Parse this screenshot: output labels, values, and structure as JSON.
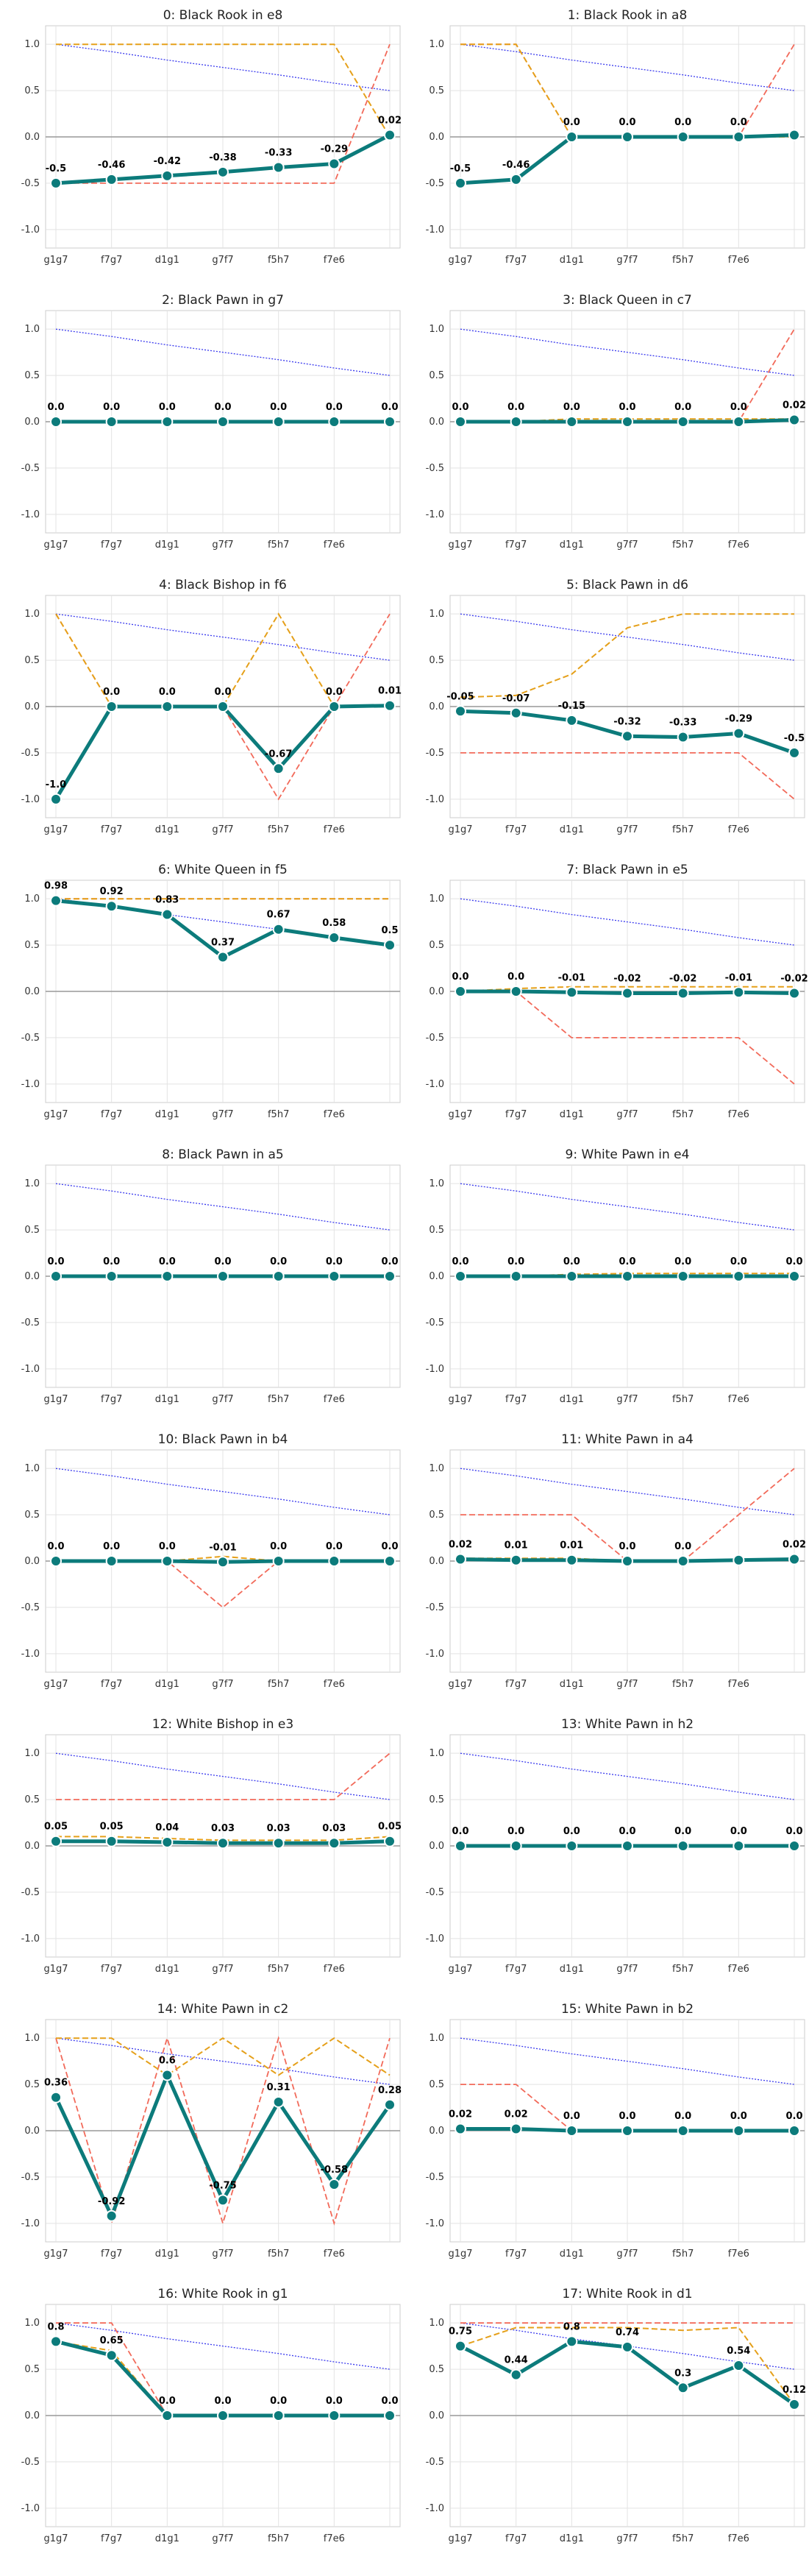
{
  "chart_data": {
    "type": "line",
    "x_ticks": [
      "g1g7",
      "f7g7",
      "d1g1",
      "g7f7",
      "f5h7",
      "f7e6",
      ""
    ],
    "y_ticks": [
      "1.0",
      "0.5",
      "0.0",
      "-0.5",
      "-1.0"
    ],
    "ylim": [
      -1.2,
      1.2
    ],
    "grid": true,
    "colors": {
      "main": "#0c7b7b",
      "orange": "#e5a01a",
      "red": "#f26a5a",
      "blue": "#3a3aee",
      "zero": "#999999"
    },
    "panels": [
      {
        "title": "0: Black Rook in e8",
        "main": [
          -0.5,
          -0.46,
          -0.42,
          -0.38,
          -0.33,
          -0.29,
          0.02
        ],
        "labels": [
          "-0.5",
          "-0.46",
          "-0.42",
          "-0.38",
          "-0.33",
          "-0.29",
          "0.02"
        ],
        "orange": [
          1.0,
          1.0,
          1.0,
          1.0,
          1.0,
          1.0,
          0.0
        ],
        "red": [
          -0.5,
          -0.5,
          -0.5,
          -0.5,
          -0.5,
          -0.5,
          1.0
        ],
        "blue": [
          1.0,
          0.92,
          0.83,
          0.75,
          0.67,
          0.58,
          0.5
        ]
      },
      {
        "title": "1: Black Rook in a8",
        "main": [
          -0.5,
          -0.46,
          0.0,
          0.0,
          0.0,
          0.0,
          0.02
        ],
        "labels": [
          "-0.5",
          "-0.46",
          "0.0",
          "0.0",
          "0.0",
          "0.0",
          ""
        ],
        "orange": [
          1.0,
          1.0,
          0.0,
          0.0,
          0.0,
          0.0,
          0.0
        ],
        "red": [
          1.0,
          1.0,
          0.0,
          0.0,
          0.0,
          0.0,
          1.0
        ],
        "blue": [
          1.0,
          0.92,
          0.83,
          0.75,
          0.67,
          0.58,
          0.5
        ]
      },
      {
        "title": "2: Black Pawn in g7",
        "main": [
          0.0,
          0.0,
          0.0,
          0.0,
          0.0,
          0.0,
          0.0
        ],
        "labels": [
          "0.0",
          "0.0",
          "0.0",
          "0.0",
          "0.0",
          "0.0",
          "0.0"
        ],
        "orange": [
          0.0,
          0.0,
          0.0,
          0.0,
          0.0,
          0.0,
          0.0
        ],
        "red": [
          0.0,
          0.0,
          0.0,
          0.0,
          0.0,
          0.0,
          0.0
        ],
        "blue": [
          1.0,
          0.92,
          0.83,
          0.75,
          0.67,
          0.58,
          0.5
        ]
      },
      {
        "title": "3: Black Queen in c7",
        "main": [
          0.0,
          0.0,
          0.0,
          0.0,
          0.0,
          0.0,
          0.02
        ],
        "labels": [
          "0.0",
          "0.0",
          "0.0",
          "0.0",
          "0.0",
          "0.0",
          "0.02"
        ],
        "orange": [
          0.0,
          0.0,
          0.03,
          0.03,
          0.03,
          0.03,
          0.03
        ],
        "red": [
          0.0,
          0.0,
          0.0,
          0.0,
          0.0,
          0.0,
          1.0
        ],
        "blue": [
          1.0,
          0.92,
          0.83,
          0.75,
          0.67,
          0.58,
          0.5
        ]
      },
      {
        "title": "4: Black Bishop in f6",
        "main": [
          -1.0,
          0.0,
          0.0,
          0.0,
          -0.67,
          0.0,
          0.01
        ],
        "labels": [
          "-1.0",
          "0.0",
          "0.0",
          "0.0",
          "-0.67",
          "0.0",
          "0.01"
        ],
        "orange": [
          1.0,
          0.0,
          0.0,
          0.0,
          1.0,
          0.0,
          0.0
        ],
        "red": [
          1.0,
          0.0,
          0.0,
          0.0,
          -1.0,
          0.0,
          1.0
        ],
        "blue": [
          1.0,
          0.92,
          0.83,
          0.75,
          0.67,
          0.58,
          0.5
        ]
      },
      {
        "title": "5: Black Pawn in d6",
        "main": [
          -0.05,
          -0.07,
          -0.15,
          -0.32,
          -0.33,
          -0.29,
          -0.5
        ],
        "labels": [
          "-0.05",
          "-0.07",
          "-0.15",
          "-0.32",
          "-0.33",
          "-0.29",
          "-0.5"
        ],
        "orange": [
          0.1,
          0.12,
          0.35,
          0.85,
          1.0,
          1.0,
          1.0
        ],
        "red": [
          -0.5,
          -0.5,
          -0.5,
          -0.5,
          -0.5,
          -0.5,
          -1.0
        ],
        "blue": [
          1.0,
          0.92,
          0.83,
          0.75,
          0.67,
          0.58,
          0.5
        ]
      },
      {
        "title": "6: White Queen in f5",
        "main": [
          0.98,
          0.92,
          0.83,
          0.37,
          0.67,
          0.58,
          0.5
        ],
        "labels": [
          "0.98",
          "0.92",
          "0.83",
          "0.37",
          "0.67",
          "0.58",
          "0.5"
        ],
        "orange": [
          1.0,
          1.0,
          1.0,
          1.0,
          1.0,
          1.0,
          1.0
        ],
        "red": [
          1.0,
          1.0,
          1.0,
          1.0,
          1.0,
          1.0,
          1.0
        ],
        "blue": [
          1.0,
          0.92,
          0.83,
          0.75,
          0.67,
          0.58,
          0.5
        ]
      },
      {
        "title": "7: Black Pawn in e5",
        "main": [
          0.0,
          0.0,
          -0.01,
          -0.02,
          -0.02,
          -0.01,
          -0.02
        ],
        "labels": [
          "0.0",
          "0.0",
          "-0.01",
          "-0.02",
          "-0.02",
          "-0.01",
          "-0.02"
        ],
        "orange": [
          0.0,
          0.03,
          0.05,
          0.05,
          0.05,
          0.05,
          0.05
        ],
        "red": [
          0.0,
          0.0,
          -0.5,
          -0.5,
          -0.5,
          -0.5,
          -1.0
        ],
        "blue": [
          1.0,
          0.92,
          0.83,
          0.75,
          0.67,
          0.58,
          0.5
        ]
      },
      {
        "title": "8: Black Pawn in a5",
        "main": [
          0.0,
          0.0,
          0.0,
          0.0,
          0.0,
          0.0,
          0.0
        ],
        "labels": [
          "0.0",
          "0.0",
          "0.0",
          "0.0",
          "0.0",
          "0.0",
          "0.0"
        ],
        "orange": [
          0.0,
          0.0,
          0.0,
          0.0,
          0.0,
          0.0,
          0.0
        ],
        "red": [
          0.0,
          0.0,
          0.0,
          0.0,
          0.0,
          0.0,
          0.0
        ],
        "blue": [
          1.0,
          0.92,
          0.83,
          0.75,
          0.67,
          0.58,
          0.5
        ]
      },
      {
        "title": "9: White Pawn in e4",
        "main": [
          0.0,
          0.0,
          0.0,
          0.0,
          0.0,
          0.0,
          0.0
        ],
        "labels": [
          "0.0",
          "0.0",
          "0.0",
          "0.0",
          "0.0",
          "0.0",
          "0.0"
        ],
        "orange": [
          0.0,
          0.0,
          0.02,
          0.03,
          0.03,
          0.03,
          0.03
        ],
        "red": [
          0.0,
          0.0,
          0.0,
          0.0,
          0.0,
          0.0,
          0.0
        ],
        "blue": [
          1.0,
          0.92,
          0.83,
          0.75,
          0.67,
          0.58,
          0.5
        ]
      },
      {
        "title": "10: Black Pawn in b4",
        "main": [
          0.0,
          0.0,
          0.0,
          -0.01,
          0.0,
          0.0,
          0.0
        ],
        "labels": [
          "0.0",
          "0.0",
          "0.0",
          "-0.01",
          "0.0",
          "0.0",
          "0.0"
        ],
        "orange": [
          0.0,
          0.0,
          0.0,
          0.05,
          0.0,
          0.0,
          0.0
        ],
        "red": [
          0.0,
          0.0,
          0.0,
          -0.5,
          0.0,
          0.0,
          0.0
        ],
        "blue": [
          1.0,
          0.92,
          0.83,
          0.75,
          0.67,
          0.58,
          0.5
        ]
      },
      {
        "title": "11: White Pawn in a4",
        "main": [
          0.02,
          0.01,
          0.01,
          0.0,
          0.0,
          0.01,
          0.02
        ],
        "labels": [
          "0.02",
          "0.01",
          "0.01",
          "0.0",
          "0.0",
          "",
          "0.02"
        ],
        "orange": [
          0.03,
          0.03,
          0.03,
          0.0,
          0.0,
          0.0,
          0.03
        ],
        "red": [
          0.5,
          0.5,
          0.5,
          0.0,
          0.0,
          0.5,
          1.0
        ],
        "blue": [
          1.0,
          0.92,
          0.83,
          0.75,
          0.67,
          0.58,
          0.5
        ]
      },
      {
        "title": "12: White Bishop in e3",
        "main": [
          0.05,
          0.05,
          0.04,
          0.03,
          0.03,
          0.03,
          0.05
        ],
        "labels": [
          "0.05",
          "0.05",
          "0.04",
          "0.03",
          "0.03",
          "0.03",
          "0.05"
        ],
        "orange": [
          0.1,
          0.1,
          0.08,
          0.06,
          0.06,
          0.06,
          0.1
        ],
        "red": [
          0.5,
          0.5,
          0.5,
          0.5,
          0.5,
          0.5,
          1.0
        ],
        "blue": [
          1.0,
          0.92,
          0.83,
          0.75,
          0.67,
          0.58,
          0.5
        ]
      },
      {
        "title": "13: White Pawn in h2",
        "main": [
          0.0,
          0.0,
          0.0,
          0.0,
          0.0,
          0.0,
          0.0
        ],
        "labels": [
          "0.0",
          "0.0",
          "0.0",
          "0.0",
          "0.0",
          "0.0",
          "0.0"
        ],
        "orange": [
          0.0,
          0.0,
          0.0,
          0.0,
          0.0,
          0.0,
          0.0
        ],
        "red": [
          0.0,
          0.0,
          0.0,
          0.0,
          0.0,
          0.0,
          0.0
        ],
        "blue": [
          1.0,
          0.92,
          0.83,
          0.75,
          0.67,
          0.58,
          0.5
        ]
      },
      {
        "title": "14: White Pawn in c2",
        "main": [
          0.36,
          -0.92,
          0.6,
          -0.75,
          0.31,
          -0.58,
          0.28
        ],
        "labels": [
          "0.36",
          "-0.92",
          "0.6",
          "-0.75",
          "0.31",
          "-0.58",
          "0.28"
        ],
        "orange": [
          1.0,
          1.0,
          0.6,
          1.0,
          0.6,
          1.0,
          0.6
        ],
        "red": [
          1.0,
          -1.0,
          1.0,
          -1.0,
          1.0,
          -1.0,
          1.0
        ],
        "blue": [
          1.0,
          0.92,
          0.83,
          0.75,
          0.67,
          0.58,
          0.5
        ]
      },
      {
        "title": "15: White Pawn in b2",
        "main": [
          0.02,
          0.02,
          0.0,
          0.0,
          0.0,
          0.0,
          0.0
        ],
        "labels": [
          "0.02",
          "0.02",
          "0.0",
          "0.0",
          "0.0",
          "0.0",
          "0.0"
        ],
        "orange": [
          0.03,
          0.03,
          0.0,
          0.0,
          0.0,
          0.0,
          0.0
        ],
        "red": [
          0.5,
          0.5,
          0.0,
          0.0,
          0.0,
          0.0,
          0.0
        ],
        "blue": [
          1.0,
          0.92,
          0.83,
          0.75,
          0.67,
          0.58,
          0.5
        ]
      },
      {
        "title": "16: White Rook in g1",
        "main": [
          0.8,
          0.65,
          0.0,
          0.0,
          0.0,
          0.0,
          0.0
        ],
        "labels": [
          "0.8",
          "0.65",
          "0.0",
          "0.0",
          "0.0",
          "0.0",
          "0.0"
        ],
        "orange": [
          0.8,
          0.7,
          0.0,
          0.0,
          0.0,
          0.0,
          0.0
        ],
        "red": [
          1.0,
          1.0,
          0.0,
          0.0,
          0.0,
          0.0,
          0.0
        ],
        "blue": [
          1.0,
          0.92,
          0.83,
          0.75,
          0.67,
          0.58,
          0.5
        ]
      },
      {
        "title": "17: White Rook in d1",
        "main": [
          0.75,
          0.44,
          0.8,
          0.74,
          0.3,
          0.54,
          0.12
        ],
        "labels": [
          "0.75",
          "0.44",
          "0.8",
          "0.74",
          "0.3",
          "0.54",
          "0.12"
        ],
        "orange": [
          0.75,
          0.95,
          0.95,
          0.95,
          0.92,
          0.95,
          0.12
        ],
        "red": [
          1.0,
          1.0,
          1.0,
          1.0,
          1.0,
          1.0,
          1.0
        ],
        "blue": [
          1.0,
          0.92,
          0.83,
          0.75,
          0.67,
          0.58,
          0.5
        ]
      }
    ]
  }
}
